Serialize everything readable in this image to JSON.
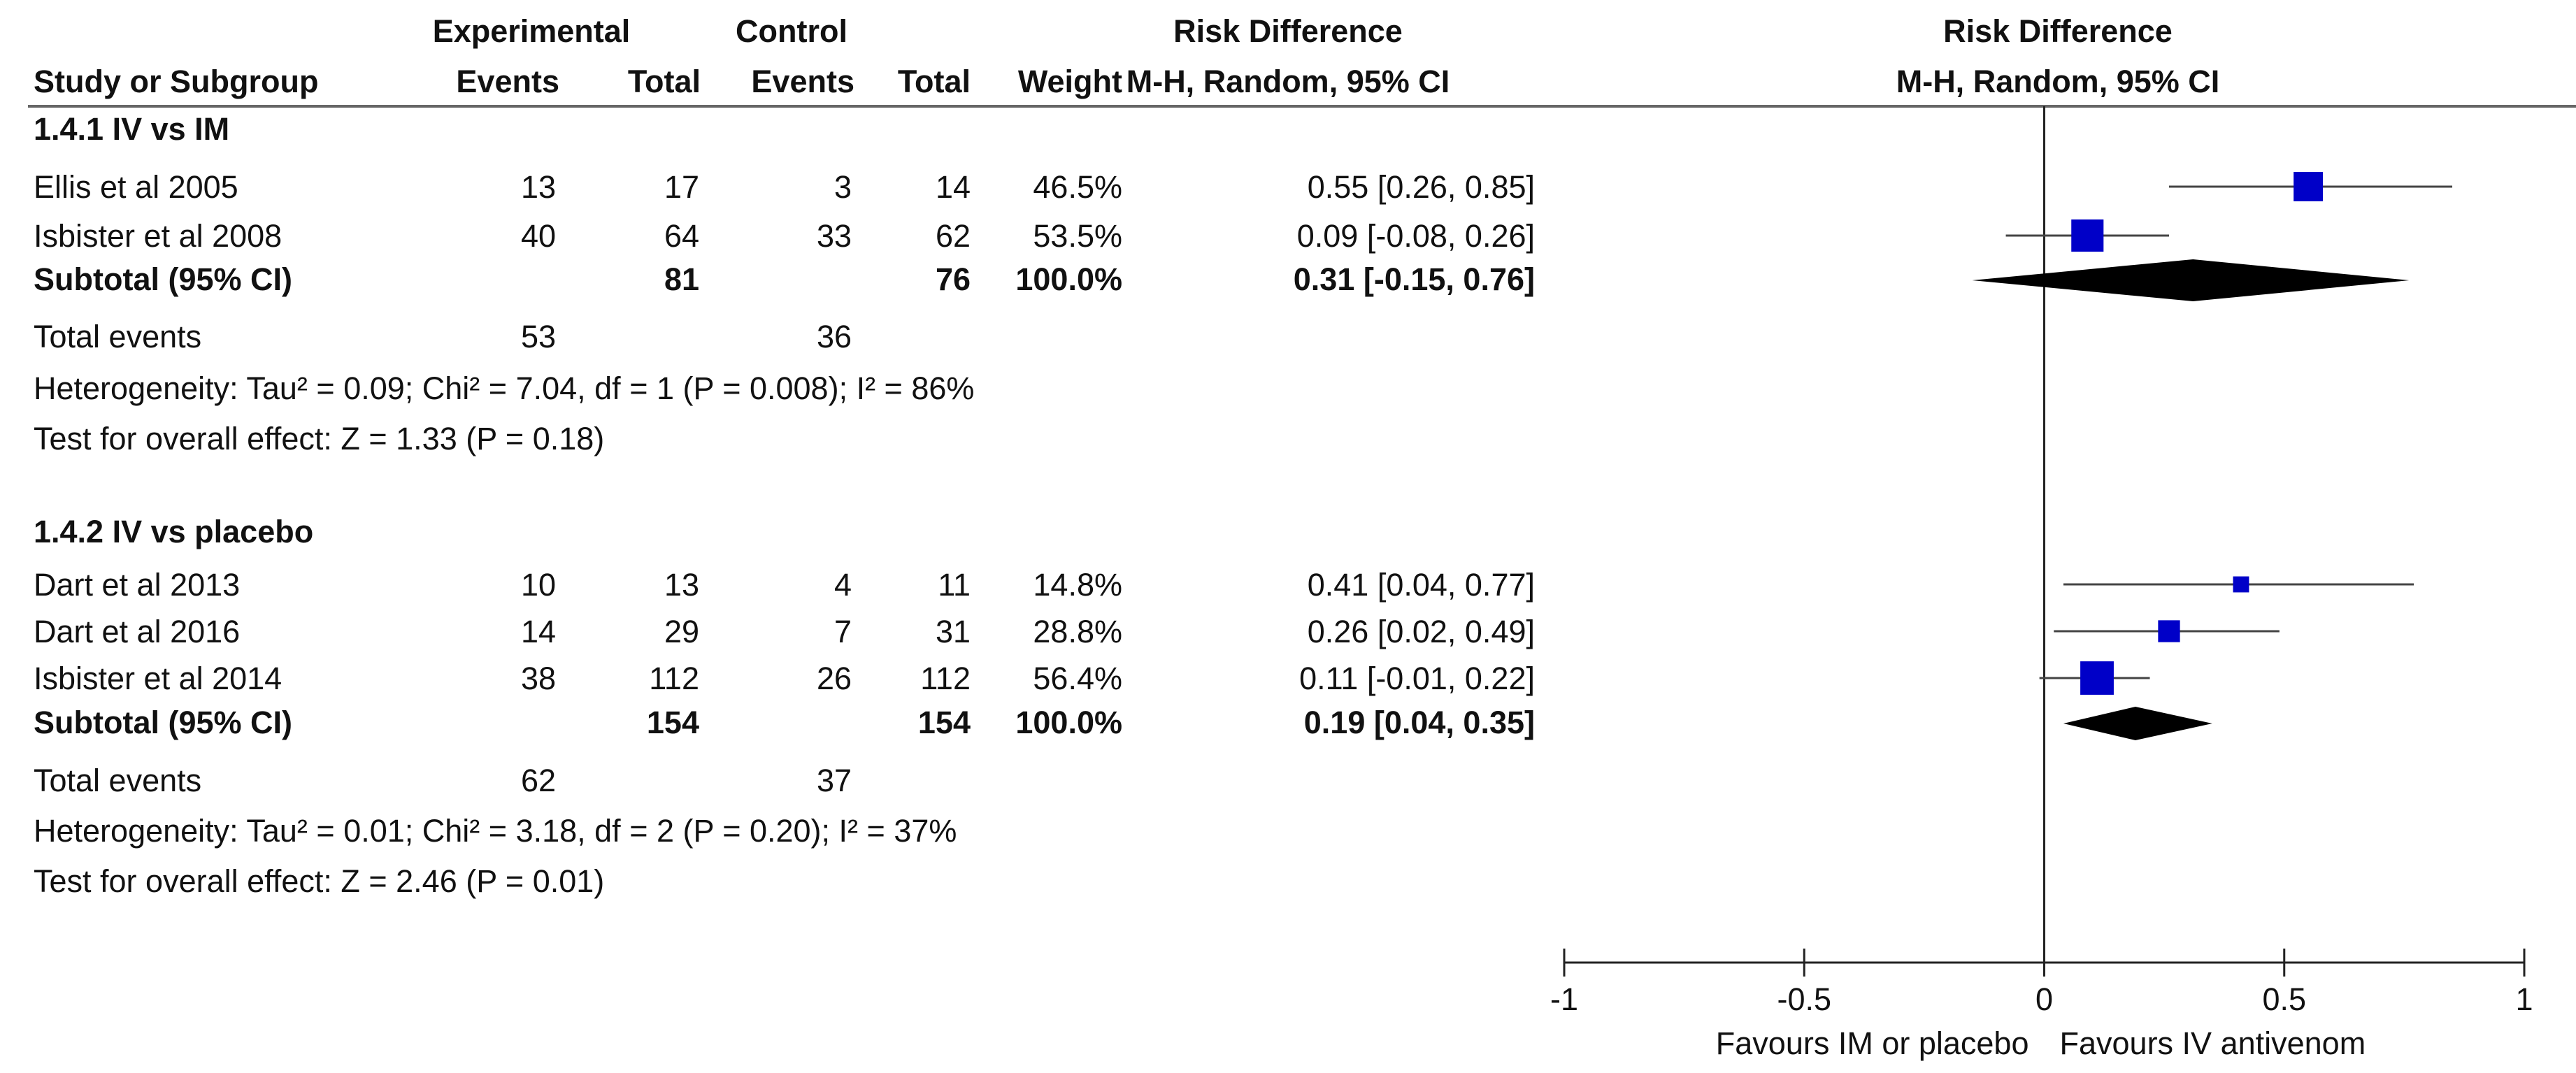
{
  "header": {
    "study_col": "Study or Subgroup",
    "experimental": "Experimental",
    "control": "Control",
    "events": "Events",
    "total": "Total",
    "weight": "Weight",
    "rd_title": "Risk Difference",
    "rd_method": "M-H, Random, 95% CI"
  },
  "colors": {
    "square": "#0000c8",
    "diamond": "#000000",
    "line": "#444444"
  },
  "chart_data": {
    "type": "forest",
    "title": "Risk Difference",
    "method": "M-H, Random, 95% CI",
    "xlim": [
      -1,
      1
    ],
    "null_line": 0,
    "xticks": [
      "-1",
      "-0.5",
      "0",
      "0.5",
      "1"
    ],
    "xtick_values": [
      -1,
      -0.5,
      0,
      0.5,
      1
    ],
    "left_label": "Favours IM or placebo",
    "right_label": "Favours IV antivenom",
    "subgroups": [
      {
        "label": "1.4.1 IV vs IM",
        "studies": [
          {
            "name": "Ellis et al 2005",
            "exp_events": "13",
            "exp_total": "17",
            "ctl_events": "3",
            "ctl_total": "14",
            "weight": "46.5%",
            "ci_text": "0.55 [0.26, 0.85]",
            "estimate": 0.55,
            "lower": 0.26,
            "upper": 0.85,
            "w": 46.5
          },
          {
            "name": "Isbister et al 2008",
            "exp_events": "40",
            "exp_total": "64",
            "ctl_events": "33",
            "ctl_total": "62",
            "weight": "53.5%",
            "ci_text": "0.09 [-0.08, 0.26]",
            "estimate": 0.09,
            "lower": -0.08,
            "upper": 0.26,
            "w": 53.5
          }
        ],
        "subtotal": {
          "label": "Subtotal (95% CI)",
          "exp_total": "81",
          "ctl_total": "76",
          "weight": "100.0%",
          "ci_text": "0.31 [-0.15, 0.76]",
          "estimate": 0.31,
          "lower": -0.15,
          "upper": 0.76
        },
        "total_events": {
          "label": "Total events",
          "exp": "53",
          "ctl": "36"
        },
        "heterogeneity": "Heterogeneity: Tau² = 0.09; Chi² = 7.04, df = 1 (P = 0.008); I² = 86%",
        "overall_effect": "Test for overall effect: Z = 1.33 (P = 0.18)"
      },
      {
        "label": "1.4.2 IV vs placebo",
        "studies": [
          {
            "name": "Dart et al 2013",
            "exp_events": "10",
            "exp_total": "13",
            "ctl_events": "4",
            "ctl_total": "11",
            "weight": "14.8%",
            "ci_text": "0.41 [0.04, 0.77]",
            "estimate": 0.41,
            "lower": 0.04,
            "upper": 0.77,
            "w": 14.8
          },
          {
            "name": "Dart  et al 2016",
            "exp_events": "14",
            "exp_total": "29",
            "ctl_events": "7",
            "ctl_total": "31",
            "weight": "28.8%",
            "ci_text": "0.26 [0.02, 0.49]",
            "estimate": 0.26,
            "lower": 0.02,
            "upper": 0.49,
            "w": 28.8
          },
          {
            "name": "Isbister et al  2014",
            "exp_events": "38",
            "exp_total": "112",
            "ctl_events": "26",
            "ctl_total": "112",
            "weight": "56.4%",
            "ci_text": "0.11 [-0.01, 0.22]",
            "estimate": 0.11,
            "lower": -0.01,
            "upper": 0.22,
            "w": 56.4
          }
        ],
        "subtotal": {
          "label": "Subtotal (95% CI)",
          "exp_total": "154",
          "ctl_total": "154",
          "weight": "100.0%",
          "ci_text": "0.19 [0.04, 0.35]",
          "estimate": 0.19,
          "lower": 0.04,
          "upper": 0.35
        },
        "total_events": {
          "label": "Total events",
          "exp": "62",
          "ctl": "37"
        },
        "heterogeneity": "Heterogeneity: Tau² = 0.01; Chi² = 3.18, df = 2 (P = 0.20); I² = 37%",
        "overall_effect": "Test for overall effect: Z = 2.46 (P = 0.01)"
      }
    ]
  }
}
